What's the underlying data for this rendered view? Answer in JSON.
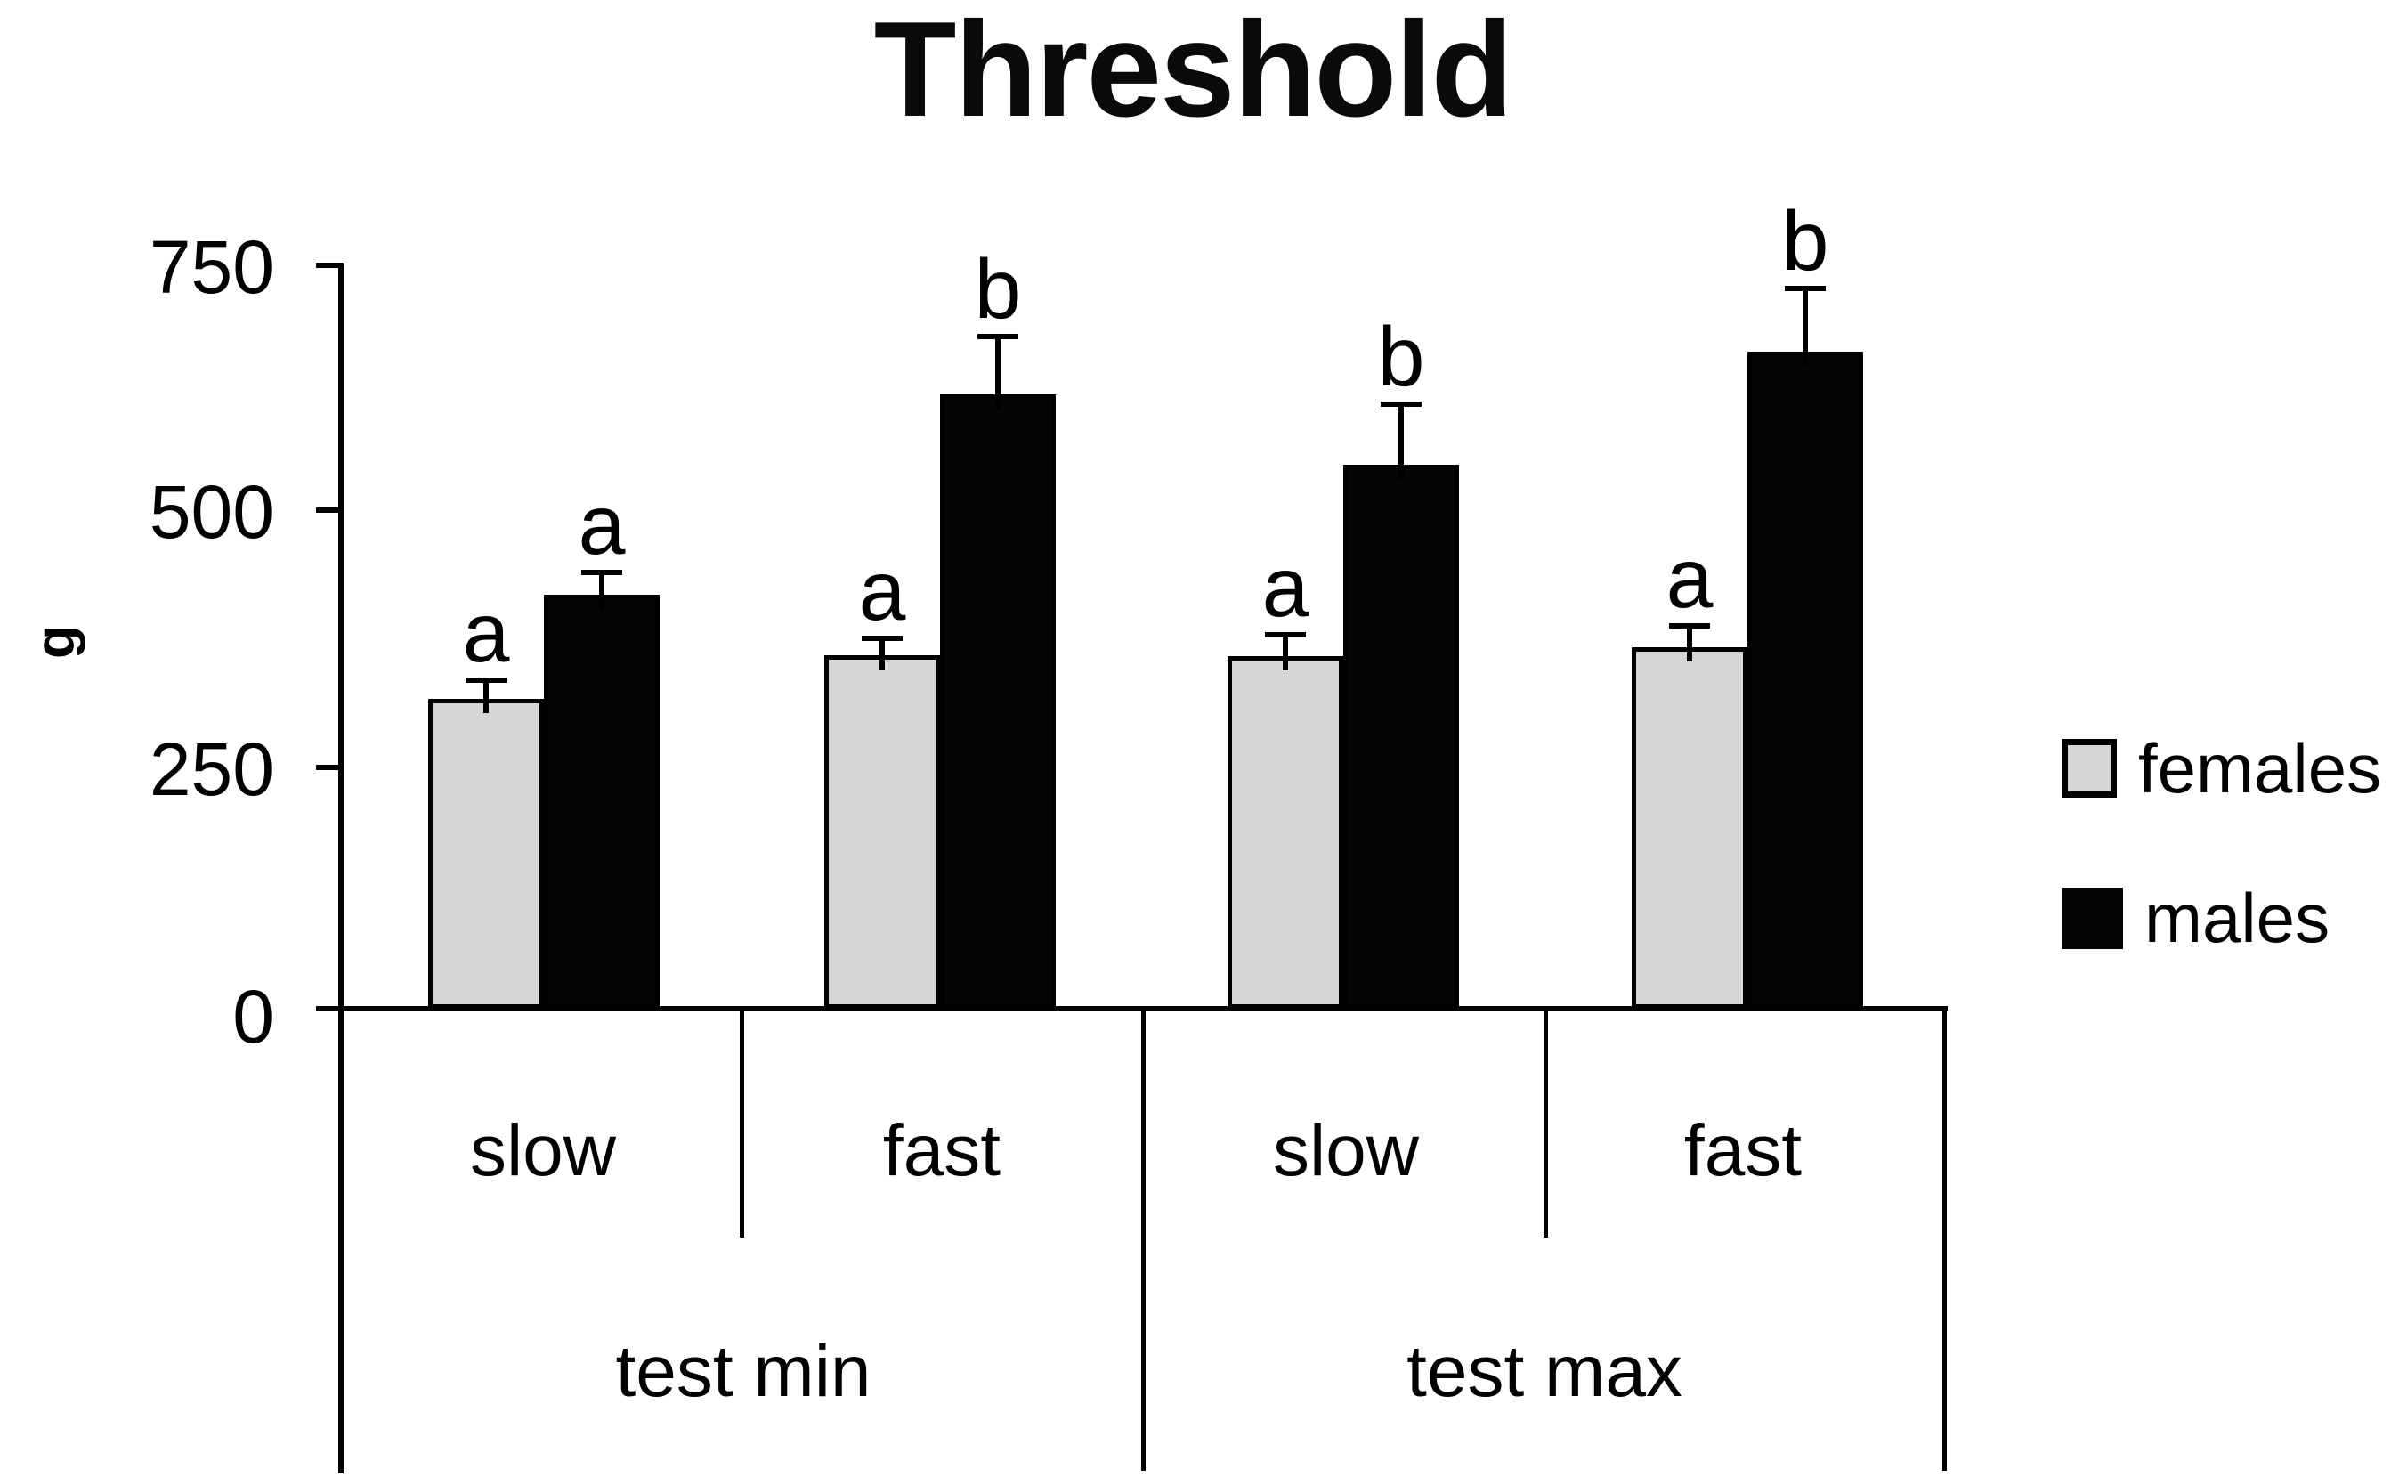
{
  "title": "Threshold",
  "y_axis": {
    "label": "g",
    "tick_labels": [
      "750",
      "500",
      "250",
      "0"
    ]
  },
  "x_axis": {
    "speed_labels": [
      "slow",
      "fast",
      "slow",
      "fast"
    ],
    "test_labels": [
      "test min",
      "test max"
    ]
  },
  "legend": {
    "items": [
      {
        "label": "females",
        "color": "#d6d6d6"
      },
      {
        "label": "males",
        "color": "#050505"
      }
    ]
  },
  "chart_data": {
    "type": "bar",
    "title": "Threshold",
    "ylabel": "g",
    "ylim": [
      0,
      750
    ],
    "yticks": [
      0,
      250,
      500,
      750
    ],
    "grid": false,
    "legend_position": "right",
    "error_bars": "upper, capped",
    "groups": [
      {
        "test": "test min",
        "speed": "slow"
      },
      {
        "test": "test min",
        "speed": "fast"
      },
      {
        "test": "test max",
        "speed": "slow"
      },
      {
        "test": "test max",
        "speed": "fast"
      }
    ],
    "series": [
      {
        "name": "females",
        "color": "#d6d6d6",
        "values": [
          313,
          357,
          356,
          365
        ],
        "errors_plus": [
          21,
          19,
          24,
          24
        ],
        "sig_letters": [
          "a",
          "a",
          "a",
          "a"
        ]
      },
      {
        "name": "males",
        "color": "#050505",
        "values": [
          418,
          620,
          549,
          663
        ],
        "errors_plus": [
          25,
          61,
          64,
          66
        ],
        "sig_letters": [
          "a",
          "b",
          "b",
          "b"
        ]
      }
    ]
  }
}
